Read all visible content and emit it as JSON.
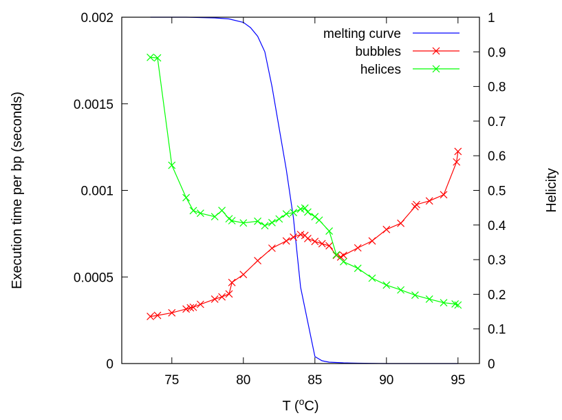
{
  "chart_data": {
    "type": "line",
    "xlabel": "T (",
    "xlabel_sup": "o",
    "xlabel_suffix": "C)",
    "ylabel": "Execution time per bp (seconds)",
    "y2label": "Helicity",
    "xlim": [
      71.5,
      96.5
    ],
    "ylim": [
      0,
      0.002
    ],
    "y2lim": [
      0,
      1
    ],
    "x_ticks": [
      75,
      80,
      85,
      90,
      95
    ],
    "x_tick_labels": [
      "75",
      "80",
      "85",
      "90",
      "95"
    ],
    "y_ticks": [
      0,
      0.0005,
      0.001,
      0.0015,
      0.002
    ],
    "y_tick_labels": [
      "0",
      "0.0005",
      "0.001",
      "0.0015",
      "0.002"
    ],
    "y2_ticks": [
      0,
      0.1,
      0.2,
      0.3,
      0.4,
      0.5,
      0.6,
      0.7,
      0.8,
      0.9,
      1
    ],
    "y2_tick_labels": [
      "0",
      "0.1",
      "0.2",
      "0.3",
      "0.4",
      "0.5",
      "0.6",
      "0.7",
      "0.8",
      "0.9",
      "1"
    ],
    "grid": false,
    "legend_position": "top-right",
    "series": [
      {
        "name": "melting curve",
        "axis": "right",
        "color": "#0000ff",
        "marker": "none",
        "x": [
          73.5,
          74,
          75,
          76,
          77,
          78,
          79,
          80,
          80.5,
          81,
          81.5,
          82,
          82.5,
          83,
          83.5,
          84,
          84.5,
          85,
          85.5,
          86,
          87,
          88,
          90,
          95
        ],
        "y": [
          1.0,
          1.0,
          1.0,
          1.0,
          0.999,
          0.998,
          0.995,
          0.985,
          0.97,
          0.945,
          0.9,
          0.8,
          0.68,
          0.56,
          0.42,
          0.22,
          0.12,
          0.02,
          0.008,
          0.004,
          0.002,
          0.001,
          0.0,
          0.0
        ]
      },
      {
        "name": "bubbles",
        "axis": "left",
        "color": "#ff0000",
        "marker": "x",
        "x": [
          73.5,
          74,
          75,
          76,
          76.3,
          76.5,
          77,
          78,
          78.5,
          79,
          79.2,
          80,
          81,
          82,
          83,
          83.5,
          84,
          84.3,
          84.5,
          85,
          85.5,
          86,
          86.5,
          86.8,
          87,
          88,
          89,
          90,
          91,
          92,
          92.1,
          93,
          94,
          94.9,
          95
        ],
        "y": [
          0.000272,
          0.000278,
          0.000293,
          0.000315,
          0.000322,
          0.000325,
          0.000342,
          0.000372,
          0.000385,
          0.000402,
          0.000468,
          0.000514,
          0.000594,
          0.000666,
          0.000708,
          0.00073,
          0.000745,
          0.00074,
          0.000722,
          0.000705,
          0.000692,
          0.00068,
          0.000625,
          0.000615,
          0.000625,
          0.000668,
          0.000708,
          0.000774,
          0.00081,
          0.000906,
          0.000918,
          0.000939,
          0.000975,
          0.001164,
          0.001225
        ]
      },
      {
        "name": "helices",
        "axis": "left",
        "color": "#00ff00",
        "marker": "x",
        "x": [
          73.5,
          74,
          75,
          76,
          76.5,
          77,
          78,
          78.5,
          79,
          79.2,
          80,
          81,
          81.5,
          82,
          82.5,
          83,
          83.5,
          84,
          84.3,
          84.5,
          85,
          85.3,
          86,
          86.5,
          87,
          88,
          89,
          90,
          91,
          92,
          93,
          94,
          94.8,
          95
        ],
        "y": [
          0.001768,
          0.001765,
          0.001145,
          0.000958,
          0.000883,
          0.000868,
          0.000848,
          0.000884,
          0.000836,
          0.000825,
          0.000812,
          0.000822,
          0.000796,
          0.000814,
          0.000835,
          0.000864,
          0.000872,
          0.000892,
          0.000898,
          0.000875,
          0.000848,
          0.000828,
          0.000765,
          0.000628,
          0.000588,
          0.00055,
          0.000493,
          0.000453,
          0.000425,
          0.000395,
          0.000372,
          0.000351,
          0.000344,
          0.000338
        ]
      }
    ]
  }
}
